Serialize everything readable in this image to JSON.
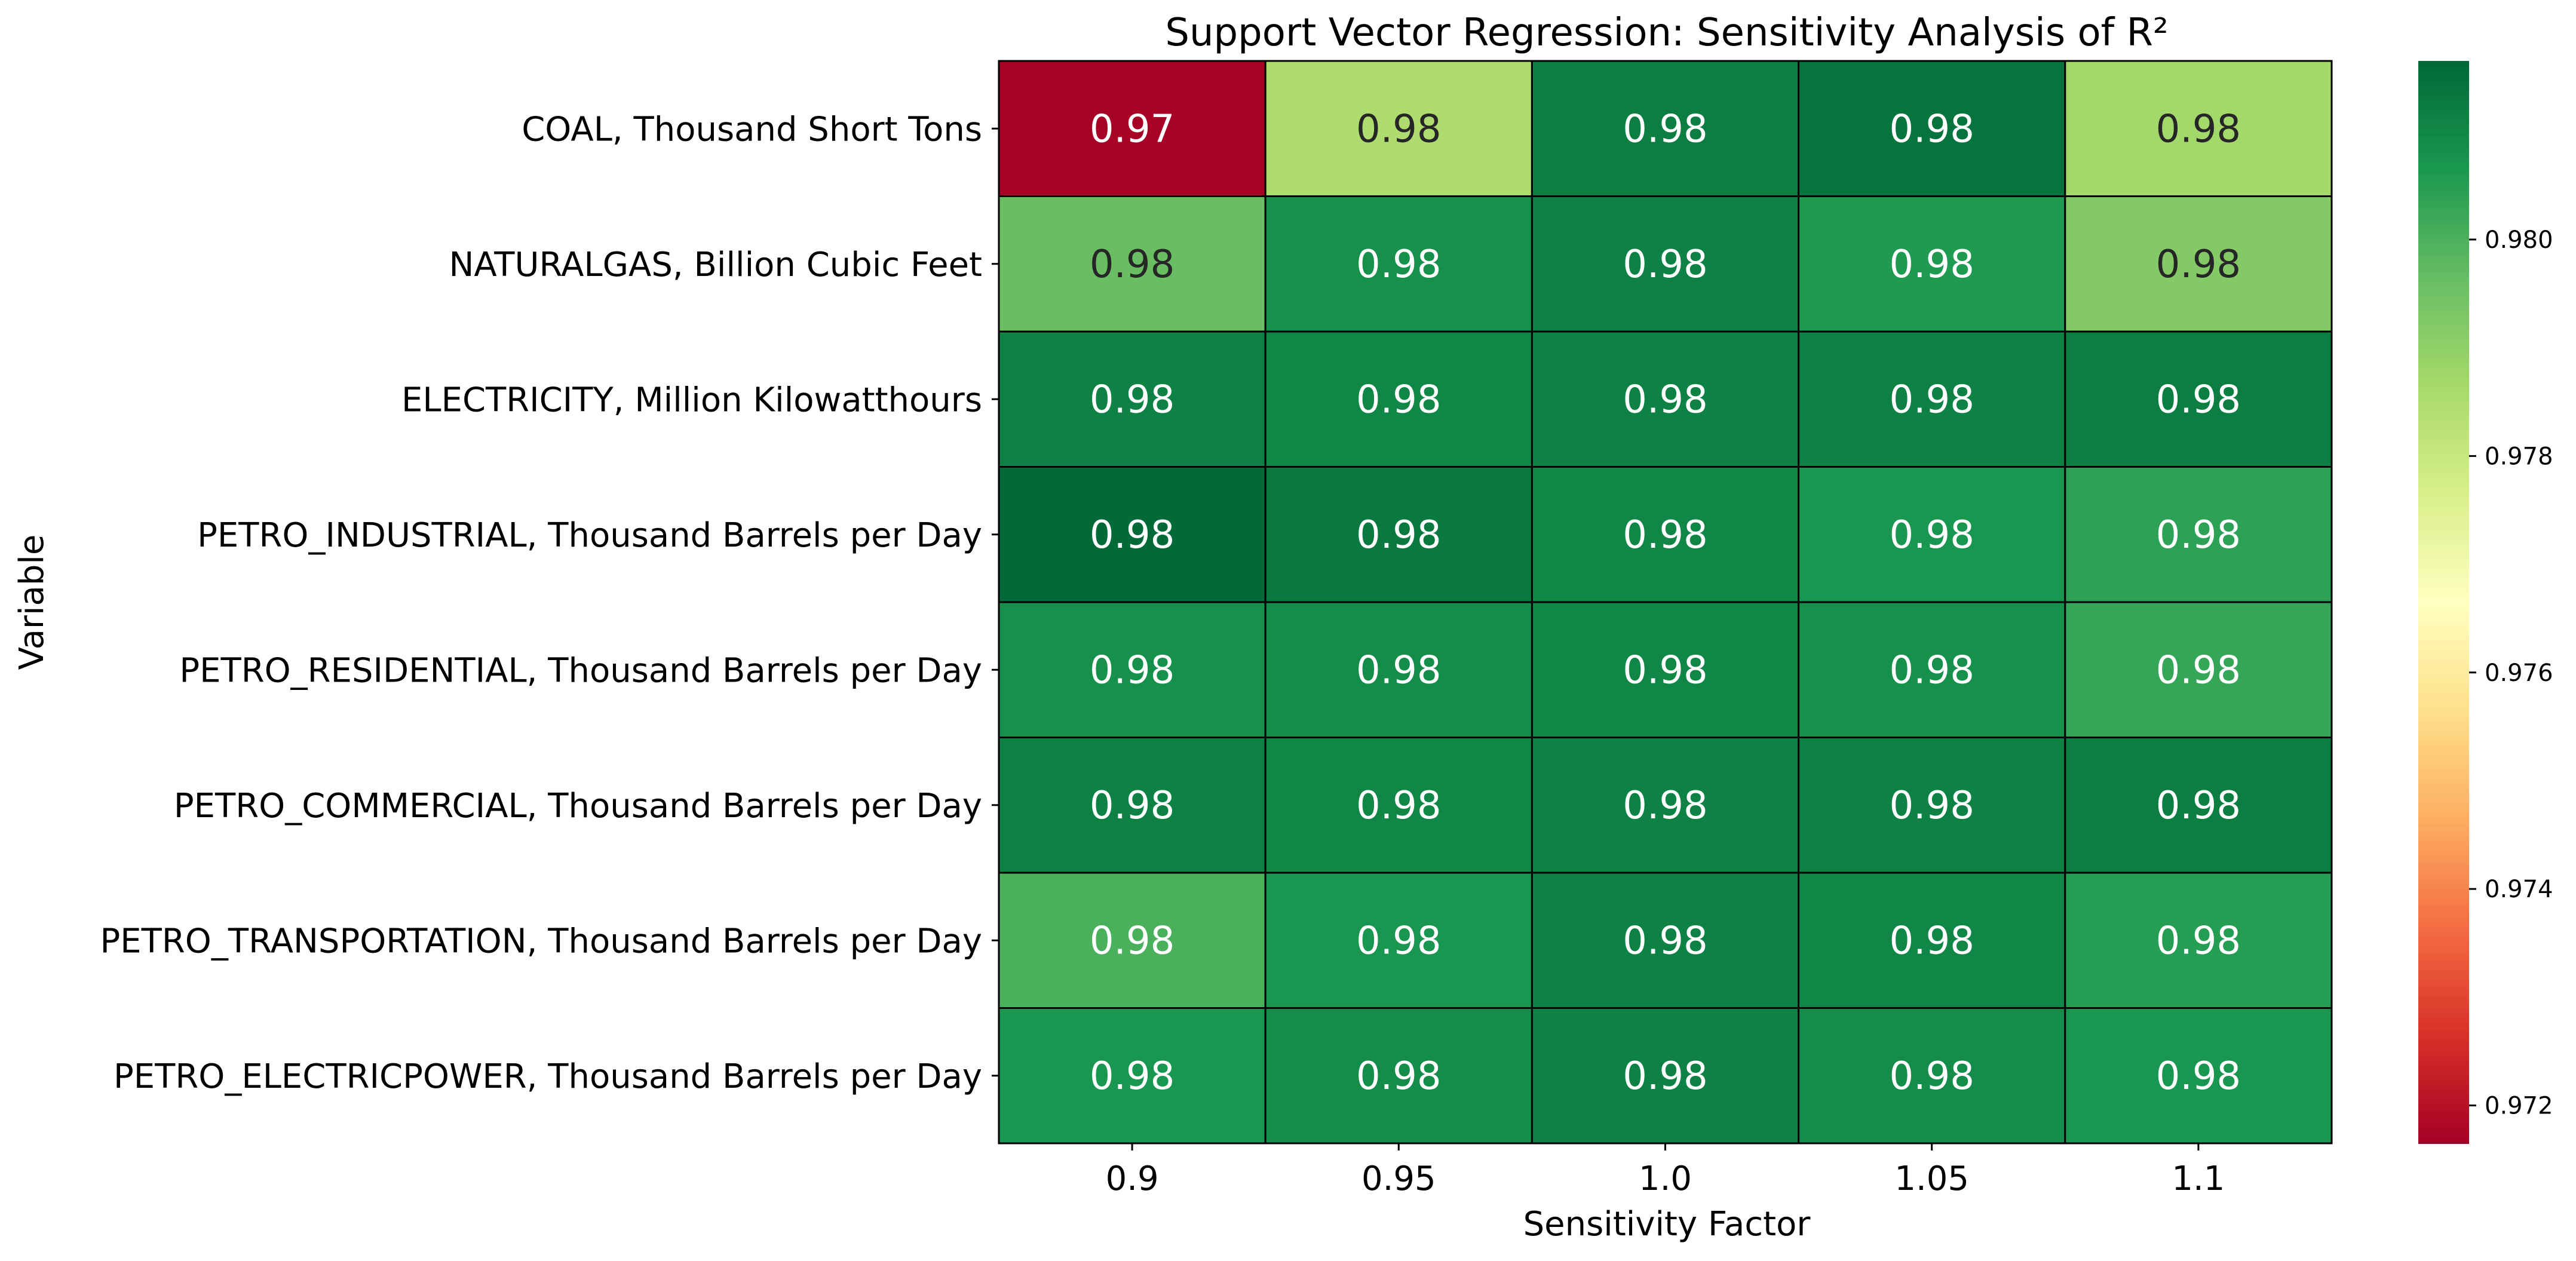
{
  "chart_data": {
    "type": "heatmap",
    "title": "Support Vector Regression: Sensitivity Analysis of R²",
    "xlabel": "Sensitivity Factor",
    "ylabel": "Variable",
    "x_categories": [
      "0.9",
      "0.95",
      "1.0",
      "1.05",
      "1.1"
    ],
    "y_categories": [
      "COAL, Thousand Short Tons",
      "NATURALGAS, Billion Cubic Feet",
      "ELECTRICITY, Million Kilowatthours",
      "PETRO_INDUSTRIAL, Thousand Barrels per Day",
      "PETRO_RESIDENTIAL, Thousand Barrels per Day",
      "PETRO_COMMERCIAL, Thousand Barrels per Day",
      "PETRO_TRANSPORTATION, Thousand Barrels per Day",
      "PETRO_ELECTRICPOWER, Thousand Barrels per Day"
    ],
    "values": [
      [
        0.9717,
        0.9785,
        0.9812,
        0.9814,
        0.9787
      ],
      [
        0.9796,
        0.9808,
        0.9811,
        0.9806,
        0.9792
      ],
      [
        0.9811,
        0.981,
        0.9811,
        0.9811,
        0.9812
      ],
      [
        0.9816,
        0.9813,
        0.981,
        0.9807,
        0.9804
      ],
      [
        0.9808,
        0.9809,
        0.981,
        0.9808,
        0.9803
      ],
      [
        0.9811,
        0.981,
        0.9811,
        0.9811,
        0.9812
      ],
      [
        0.98,
        0.9807,
        0.9811,
        0.981,
        0.9805
      ],
      [
        0.9807,
        0.9809,
        0.9811,
        0.9809,
        0.9807
      ]
    ],
    "annotations": [
      [
        "0.97",
        "0.98",
        "0.98",
        "0.98",
        "0.98"
      ],
      [
        "0.98",
        "0.98",
        "0.98",
        "0.98",
        "0.98"
      ],
      [
        "0.98",
        "0.98",
        "0.98",
        "0.98",
        "0.98"
      ],
      [
        "0.98",
        "0.98",
        "0.98",
        "0.98",
        "0.98"
      ],
      [
        "0.98",
        "0.98",
        "0.98",
        "0.98",
        "0.98"
      ],
      [
        "0.98",
        "0.98",
        "0.98",
        "0.98",
        "0.98"
      ],
      [
        "0.98",
        "0.98",
        "0.98",
        "0.98",
        "0.98"
      ],
      [
        "0.98",
        "0.98",
        "0.98",
        "0.98",
        "0.98"
      ]
    ],
    "colormap": "RdYlGn",
    "color_range": [
      0.97165,
      0.98165
    ],
    "colorbar_ticks": [
      0.972,
      0.974,
      0.976,
      0.978,
      0.98
    ],
    "colorbar_tick_labels": [
      "0.972",
      "0.974",
      "0.976",
      "0.978",
      "0.980"
    ],
    "grid": false,
    "cell_border_color": "#000000",
    "colormap_stops": [
      "#a50026",
      "#d73027",
      "#f46d43",
      "#fdae61",
      "#fee08b",
      "#ffffbf",
      "#d9ef8b",
      "#a6d96a",
      "#66bd63",
      "#1a9850",
      "#006837"
    ],
    "text_colors": {
      "dark": "#262626",
      "light": "#ffffff"
    }
  }
}
